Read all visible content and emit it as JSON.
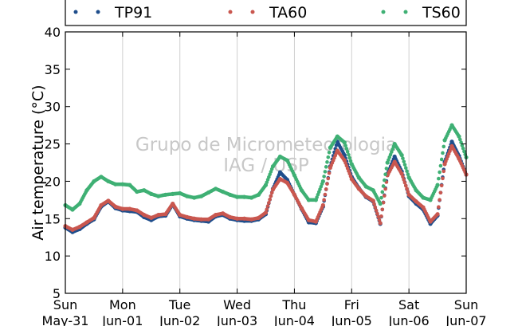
{
  "chart_data": {
    "type": "scatter",
    "title": "",
    "xlabel": "",
    "ylabel": "Air temperature (°C)",
    "ylim": [
      5,
      40
    ],
    "yticks": [
      5,
      10,
      15,
      20,
      25,
      30,
      35,
      40
    ],
    "grid": "vertical",
    "legend_position": "top",
    "watermark": [
      "Grupo de Micrometeorologia",
      "IAG / USP"
    ],
    "x_ticks": [
      {
        "date": "2015-05-31",
        "day": "Sun",
        "label": "May-31"
      },
      {
        "date": "2015-06-01",
        "day": "Mon",
        "label": "Jun-01"
      },
      {
        "date": "2015-06-02",
        "day": "Tue",
        "label": "Jun-02"
      },
      {
        "date": "2015-06-03",
        "day": "Wed",
        "label": "Jun-03"
      },
      {
        "date": "2015-06-04",
        "day": "Thu",
        "label": "Jun-04"
      },
      {
        "date": "2015-06-05",
        "day": "Fri",
        "label": "Jun-05"
      },
      {
        "date": "2015-06-06",
        "day": "Sat",
        "label": "Jun-06"
      },
      {
        "date": "2015-06-07",
        "day": "Sun",
        "label": "Jun-07"
      }
    ],
    "series": [
      {
        "name": "TP91",
        "color": "#1f4e8c",
        "x": [
          "2015-05-31 00:00",
          "2015-05-31 03:00",
          "2015-05-31 06:00",
          "2015-05-31 09:00",
          "2015-05-31 12:00",
          "2015-05-31 15:00",
          "2015-05-31 18:00",
          "2015-05-31 21:00",
          "2015-06-01 00:00",
          "2015-06-01 03:00",
          "2015-06-01 06:00",
          "2015-06-01 09:00",
          "2015-06-01 12:00",
          "2015-06-01 15:00",
          "2015-06-01 18:00",
          "2015-06-01 21:00",
          "2015-06-02 00:00",
          "2015-06-02 03:00",
          "2015-06-02 06:00",
          "2015-06-02 09:00",
          "2015-06-02 12:00",
          "2015-06-02 15:00",
          "2015-06-02 18:00",
          "2015-06-02 21:00",
          "2015-06-03 00:00",
          "2015-06-03 03:00",
          "2015-06-03 06:00",
          "2015-06-03 09:00",
          "2015-06-03 12:00",
          "2015-06-03 15:00",
          "2015-06-03 18:00",
          "2015-06-03 21:00",
          "2015-06-04 00:00",
          "2015-06-04 03:00",
          "2015-06-04 06:00",
          "2015-06-04 09:00",
          "2015-06-04 12:00",
          "2015-06-04 15:00",
          "2015-06-04 18:00",
          "2015-06-04 21:00",
          "2015-06-05 00:00",
          "2015-06-05 03:00",
          "2015-06-05 06:00",
          "2015-06-05 09:00",
          "2015-06-05 12:00",
          "2015-06-05 15:00",
          "2015-06-05 18:00",
          "2015-06-05 21:00",
          "2015-06-06 00:00",
          "2015-06-06 03:00",
          "2015-06-06 06:00",
          "2015-06-06 09:00",
          "2015-06-06 12:00",
          "2015-06-06 15:00",
          "2015-06-06 18:00",
          "2015-06-06 21:00",
          "2015-06-07 00:00"
        ],
        "y": [
          13.8,
          13.2,
          13.6,
          14.3,
          14.9,
          16.6,
          17.3,
          16.4,
          16.1,
          16.0,
          15.9,
          15.2,
          14.8,
          15.3,
          15.4,
          16.9,
          15.3,
          15.0,
          14.8,
          14.7,
          14.6,
          15.3,
          15.5,
          15.0,
          14.8,
          14.7,
          14.7,
          14.9,
          15.6,
          19.0,
          21.2,
          20.2,
          18.2,
          16.3,
          14.5,
          14.4,
          16.6,
          22.0,
          25.3,
          23.5,
          20.6,
          19.1,
          17.9,
          17.3,
          14.3,
          21.0,
          23.3,
          21.3,
          18.0,
          17.0,
          16.2,
          14.3,
          15.4,
          22.6,
          25.3,
          23.4,
          20.9
        ]
      },
      {
        "name": "TA60",
        "color": "#c9574f",
        "x": [
          "2015-05-31 00:00",
          "2015-05-31 03:00",
          "2015-05-31 06:00",
          "2015-05-31 09:00",
          "2015-05-31 12:00",
          "2015-05-31 15:00",
          "2015-05-31 18:00",
          "2015-05-31 21:00",
          "2015-06-01 00:00",
          "2015-06-01 03:00",
          "2015-06-01 06:00",
          "2015-06-01 09:00",
          "2015-06-01 12:00",
          "2015-06-01 15:00",
          "2015-06-01 18:00",
          "2015-06-01 21:00",
          "2015-06-02 00:00",
          "2015-06-02 03:00",
          "2015-06-02 06:00",
          "2015-06-02 09:00",
          "2015-06-02 12:00",
          "2015-06-02 15:00",
          "2015-06-02 18:00",
          "2015-06-02 21:00",
          "2015-06-03 00:00",
          "2015-06-03 03:00",
          "2015-06-03 06:00",
          "2015-06-03 09:00",
          "2015-06-03 12:00",
          "2015-06-03 15:00",
          "2015-06-03 18:00",
          "2015-06-03 21:00",
          "2015-06-04 00:00",
          "2015-06-04 03:00",
          "2015-06-04 06:00",
          "2015-06-04 09:00",
          "2015-06-04 12:00",
          "2015-06-04 15:00",
          "2015-06-04 18:00",
          "2015-06-04 21:00",
          "2015-06-05 00:00",
          "2015-06-05 03:00",
          "2015-06-05 06:00",
          "2015-06-05 09:00",
          "2015-06-05 12:00",
          "2015-06-05 15:00",
          "2015-06-05 18:00",
          "2015-06-05 21:00",
          "2015-06-06 00:00",
          "2015-06-06 03:00",
          "2015-06-06 06:00",
          "2015-06-06 09:00",
          "2015-06-06 12:00",
          "2015-06-06 15:00",
          "2015-06-06 18:00",
          "2015-06-06 21:00",
          "2015-06-07 00:00"
        ],
        "y": [
          14.0,
          13.5,
          13.9,
          14.5,
          15.1,
          16.8,
          17.4,
          16.6,
          16.3,
          16.3,
          16.1,
          15.5,
          15.1,
          15.5,
          15.6,
          17.0,
          15.5,
          15.2,
          15.0,
          14.9,
          14.9,
          15.5,
          15.7,
          15.2,
          15.0,
          15.0,
          14.9,
          15.1,
          15.8,
          18.9,
          20.3,
          19.8,
          18.2,
          16.4,
          14.8,
          14.6,
          16.8,
          21.8,
          24.1,
          22.8,
          20.3,
          19.0,
          18.0,
          17.4,
          14.4,
          20.8,
          22.6,
          21.0,
          18.2,
          17.3,
          16.5,
          14.6,
          15.6,
          22.3,
          24.7,
          23.0,
          20.9
        ]
      },
      {
        "name": "TS60",
        "color": "#3fb074",
        "x": [
          "2015-05-31 00:00",
          "2015-05-31 03:00",
          "2015-05-31 06:00",
          "2015-05-31 09:00",
          "2015-05-31 12:00",
          "2015-05-31 15:00",
          "2015-05-31 18:00",
          "2015-05-31 21:00",
          "2015-06-01 00:00",
          "2015-06-01 03:00",
          "2015-06-01 06:00",
          "2015-06-01 09:00",
          "2015-06-01 12:00",
          "2015-06-01 15:00",
          "2015-06-01 18:00",
          "2015-06-01 21:00",
          "2015-06-02 00:00",
          "2015-06-02 03:00",
          "2015-06-02 06:00",
          "2015-06-02 09:00",
          "2015-06-02 12:00",
          "2015-06-02 15:00",
          "2015-06-02 18:00",
          "2015-06-02 21:00",
          "2015-06-03 00:00",
          "2015-06-03 03:00",
          "2015-06-03 06:00",
          "2015-06-03 09:00",
          "2015-06-03 12:00",
          "2015-06-03 15:00",
          "2015-06-03 18:00",
          "2015-06-03 21:00",
          "2015-06-04 00:00",
          "2015-06-04 03:00",
          "2015-06-04 06:00",
          "2015-06-04 09:00",
          "2015-06-04 12:00",
          "2015-06-04 15:00",
          "2015-06-04 18:00",
          "2015-06-04 21:00",
          "2015-06-05 00:00",
          "2015-06-05 03:00",
          "2015-06-05 06:00",
          "2015-06-05 09:00",
          "2015-06-05 12:00",
          "2015-06-05 15:00",
          "2015-06-05 18:00",
          "2015-06-05 21:00",
          "2015-06-06 00:00",
          "2015-06-06 03:00",
          "2015-06-06 06:00",
          "2015-06-06 09:00",
          "2015-06-06 12:00",
          "2015-06-06 15:00",
          "2015-06-06 18:00",
          "2015-06-06 21:00",
          "2015-06-07 00:00"
        ],
        "y": [
          16.8,
          16.2,
          17.0,
          18.8,
          20.0,
          20.6,
          20.0,
          19.6,
          19.6,
          19.5,
          18.6,
          18.8,
          18.3,
          18.0,
          18.2,
          18.3,
          18.4,
          18.0,
          17.8,
          18.0,
          18.5,
          19.0,
          18.6,
          18.2,
          17.9,
          17.9,
          17.8,
          18.2,
          19.5,
          22.0,
          23.3,
          22.8,
          20.8,
          18.8,
          17.5,
          17.5,
          20.0,
          24.5,
          26.0,
          25.2,
          22.3,
          20.5,
          19.3,
          18.8,
          17.0,
          22.5,
          25.0,
          23.5,
          20.5,
          18.8,
          17.8,
          17.5,
          19.5,
          25.5,
          27.5,
          26.0,
          23.2
        ]
      }
    ]
  }
}
